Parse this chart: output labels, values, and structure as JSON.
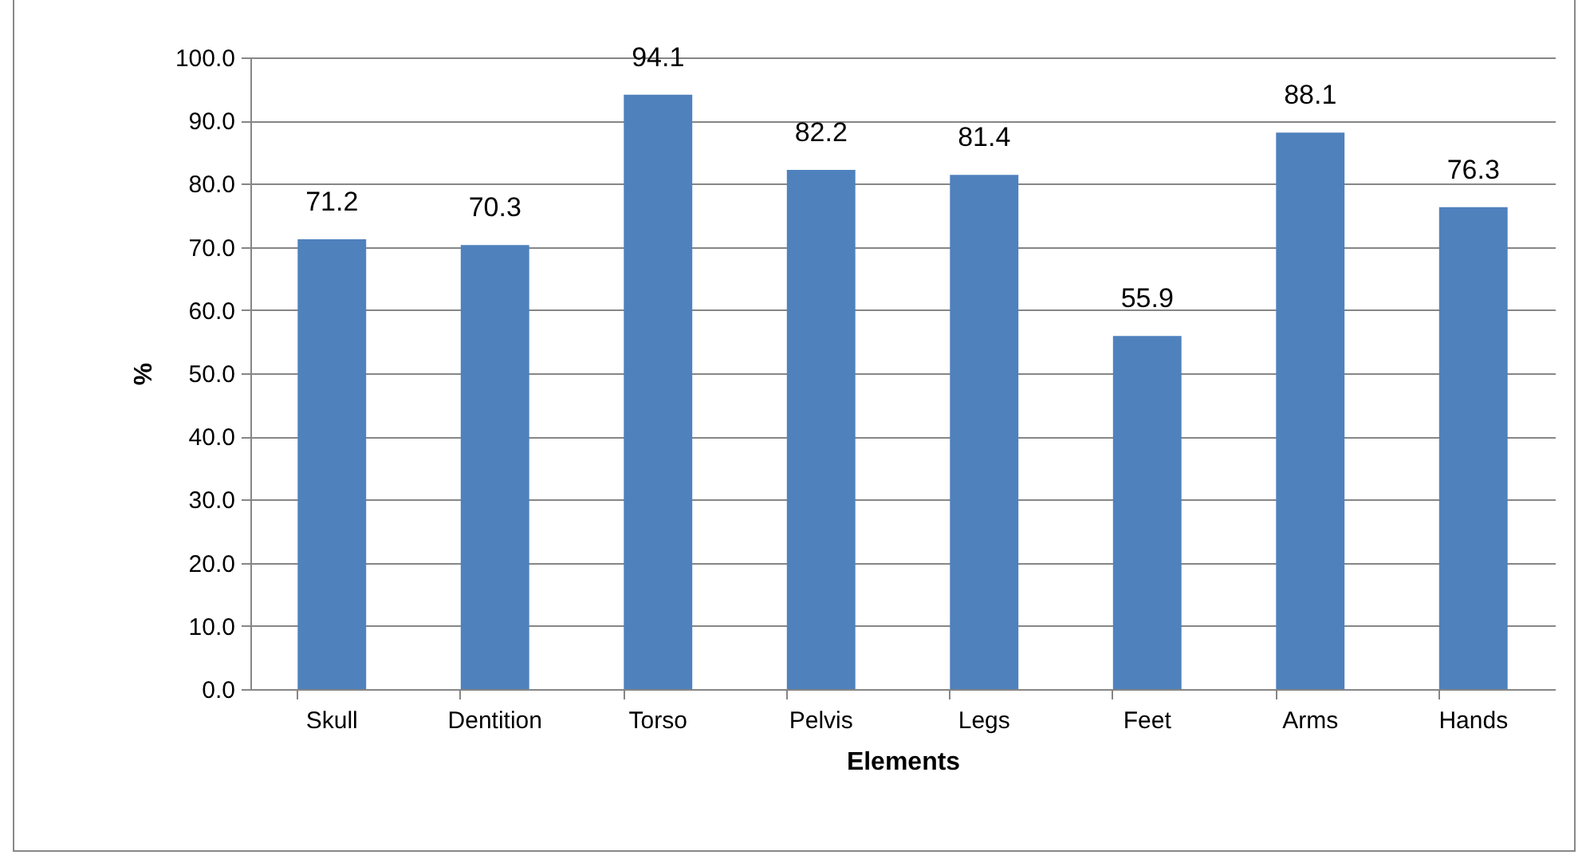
{
  "chart_data": {
    "type": "bar",
    "xlabel": "Elements",
    "ylabel": "%",
    "categories": [
      "Skull",
      "Dentition",
      "Torso",
      "Pelvis",
      "Legs",
      "Feet",
      "Arms",
      "Hands"
    ],
    "values": [
      71.2,
      70.3,
      94.1,
      82.2,
      81.4,
      55.9,
      88.1,
      76.3
    ],
    "color": "#4f81bd",
    "data_labels": true,
    "grid": "y",
    "ylim": [
      0,
      100
    ],
    "yticks": [
      {
        "value": 0,
        "label": "0.0"
      },
      {
        "value": 10,
        "label": "10.0"
      },
      {
        "value": 20,
        "label": "20.0"
      },
      {
        "value": 30,
        "label": "30.0"
      },
      {
        "value": 40,
        "label": "40.0"
      },
      {
        "value": 50,
        "label": "50.0"
      },
      {
        "value": 60,
        "label": "60.0"
      },
      {
        "value": 70,
        "label": "70.0"
      },
      {
        "value": 80,
        "label": "80.0"
      },
      {
        "value": 90,
        "label": "90.0"
      },
      {
        "value": 100,
        "label": "100.0"
      }
    ]
  }
}
